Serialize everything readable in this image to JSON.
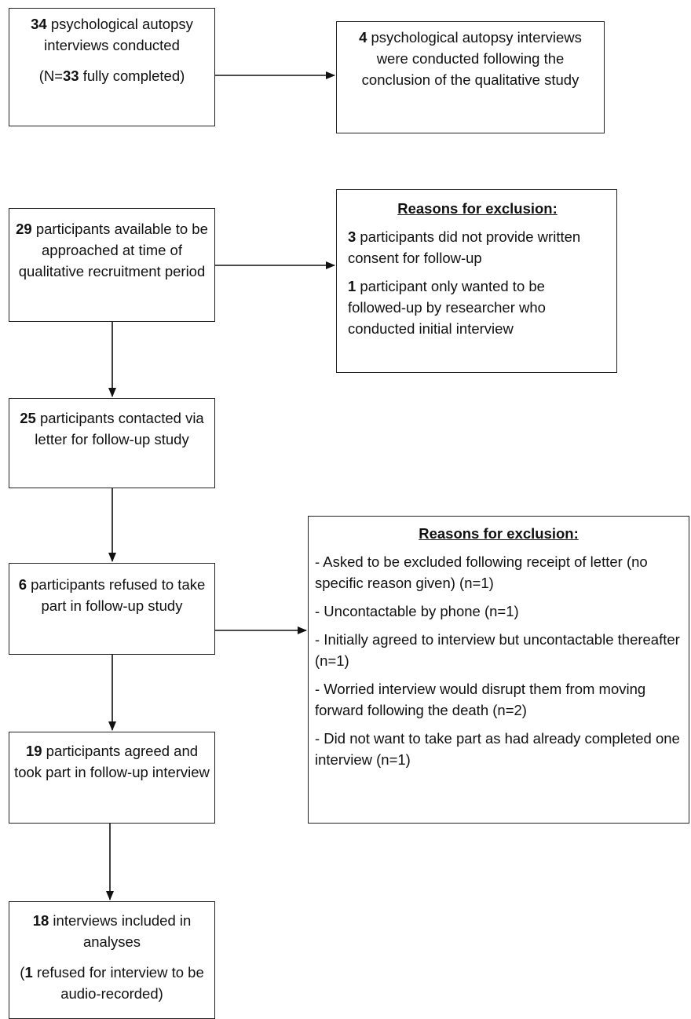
{
  "box1": {
    "num": "34",
    "text": " psychological autopsy interviews conducted",
    "sub_open": "(N=",
    "sub_num": "33",
    "sub_close": " fully completed)"
  },
  "box2": {
    "num": "4",
    "text": " psychological autopsy interviews were conducted following the conclusion of the qualitative study"
  },
  "box3": {
    "num": "29",
    "text": " participants available to be approached at time of qualitative recruitment period"
  },
  "excl1": {
    "heading": "Reasons for exclusion:",
    "items": [
      {
        "num": "3",
        "text": " participants did not provide written consent for follow-up"
      },
      {
        "num": "1",
        "text": " participant only wanted to be followed-up by researcher who conducted initial interview"
      }
    ]
  },
  "box4": {
    "num": "25",
    "text": " participants contacted via letter for follow-up study"
  },
  "box5": {
    "num": "6",
    "text": " participants refused to take part in follow-up study"
  },
  "excl2": {
    "heading": "Reasons for exclusion:",
    "items": [
      "- Asked to be excluded following receipt of letter (no specific reason given) (n=1)",
      "- Uncontactable by phone (n=1)",
      "- Initially agreed to interview but uncontactable thereafter (n=1)",
      "- Worried interview would disrupt them from moving forward following the death (n=2)",
      "- Did not want to take part as had already completed one interview (n=1)"
    ]
  },
  "box6": {
    "num": "19",
    "text": " participants agreed and took part in follow-up interview"
  },
  "box7": {
    "num": "18",
    "text": " interviews included in analyses",
    "sub_open": "(",
    "sub_num": "1",
    "sub_close": " refused for interview to be audio-recorded)"
  }
}
